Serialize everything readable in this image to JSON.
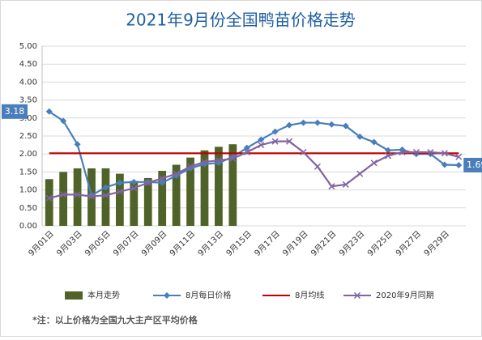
{
  "chart_data": {
    "type": "bar",
    "title": "2021年9月份全国鸭苗价格走势",
    "categories": [
      "9月01日",
      null,
      "9月03日",
      null,
      "9月05日",
      null,
      "9月07日",
      null,
      "9月09日",
      null,
      "9月11日",
      null,
      "9月13日",
      null,
      "9月15日",
      null,
      "9月17日",
      null,
      "9月19日",
      null,
      "9月21日",
      null,
      "9月23日",
      null,
      "9月25日",
      null,
      "9月27日",
      null,
      "9月29日",
      null
    ],
    "series": [
      {
        "name": "本月走势",
        "type": "bar",
        "color": "#4f6228",
        "values": [
          1.3,
          1.5,
          1.6,
          1.6,
          1.6,
          1.45,
          1.25,
          1.33,
          1.53,
          1.7,
          1.9,
          2.1,
          2.2,
          2.27,
          null,
          null,
          null,
          null,
          null,
          null,
          null,
          null,
          null,
          null,
          null,
          null,
          null,
          null,
          null,
          null
        ]
      },
      {
        "name": "8月每日价格",
        "type": "line",
        "marker": "diamond",
        "color": "#4a7ebb",
        "values": [
          3.18,
          2.92,
          2.27,
          0.85,
          1.07,
          1.2,
          1.22,
          1.22,
          1.2,
          1.4,
          1.6,
          1.72,
          1.75,
          1.92,
          2.17,
          2.4,
          2.62,
          2.8,
          2.87,
          2.87,
          2.82,
          2.78,
          2.48,
          2.33,
          2.1,
          2.12,
          2.0,
          2.0,
          1.7,
          1.69
        ]
      },
      {
        "name": "8月均线",
        "type": "line",
        "marker": "none",
        "color": "#c00000",
        "values": [
          2.02,
          2.02,
          2.02,
          2.02,
          2.02,
          2.02,
          2.02,
          2.02,
          2.02,
          2.02,
          2.02,
          2.02,
          2.02,
          2.02,
          2.02,
          2.02,
          2.02,
          2.02,
          2.02,
          2.02,
          2.02,
          2.02,
          2.02,
          2.02,
          2.02,
          2.02,
          2.02,
          2.02,
          2.02,
          2.02
        ]
      },
      {
        "name": "2020年9月同期",
        "type": "line",
        "marker": "x",
        "color": "#8064a2",
        "values": [
          0.77,
          0.87,
          0.87,
          0.82,
          0.85,
          0.95,
          1.05,
          1.2,
          1.32,
          1.45,
          1.65,
          1.78,
          1.82,
          1.87,
          2.05,
          2.25,
          2.35,
          2.35,
          2.05,
          1.65,
          1.1,
          1.15,
          1.45,
          1.75,
          1.95,
          2.05,
          2.05,
          2.05,
          2.02,
          1.92
        ]
      }
    ],
    "ylim": [
      0,
      5
    ],
    "yticks": [
      {
        "value": 0,
        "label": "0.00"
      },
      {
        "value": 0.5,
        "label": "0.50"
      },
      {
        "value": 1,
        "label": "1.00"
      },
      {
        "value": 1.5,
        "label": "1.50"
      },
      {
        "value": 2,
        "label": "2.00"
      },
      {
        "value": 2.5,
        "label": "2.50"
      },
      {
        "value": 3,
        "label": "3.00"
      },
      {
        "value": 3.5,
        "label": "3.50"
      },
      {
        "value": 4,
        "label": "4.00"
      },
      {
        "value": 4.5,
        "label": "4.50"
      },
      {
        "value": 5,
        "label": "5.00"
      }
    ],
    "grid": true,
    "legend": "bottom",
    "footnote": "*注：以上价格为全国九大主产区平均价格"
  }
}
